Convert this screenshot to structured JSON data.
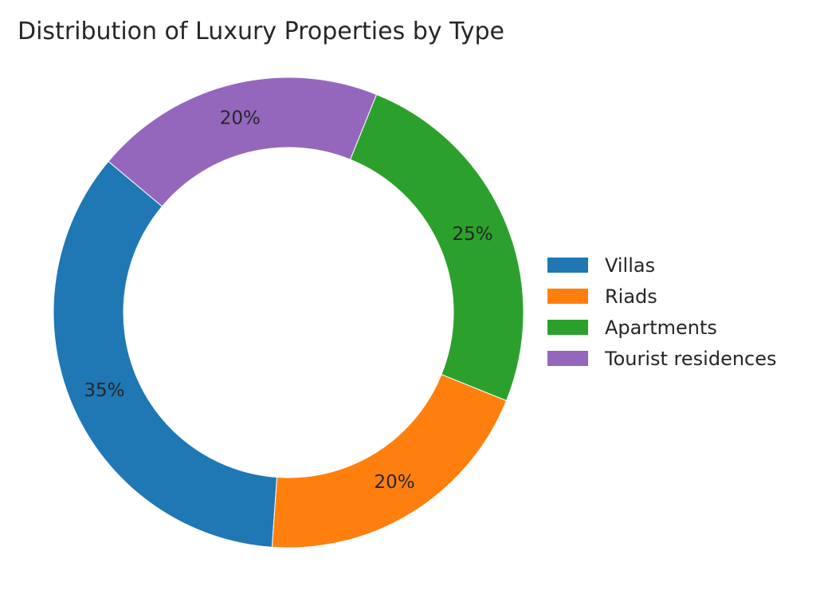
{
  "chart_data": {
    "type": "pie",
    "title": "Distribution of Luxury Properties by Type",
    "donut": true,
    "start_angle_deg": 140,
    "direction": "counterclockwise",
    "legend_position": "right",
    "slices": [
      {
        "label": "Villas",
        "value": 35,
        "pct_label": "35%",
        "color": "#1f77b4"
      },
      {
        "label": "Riads",
        "value": 20,
        "pct_label": "20%",
        "color": "#ff7f0e"
      },
      {
        "label": "Apartments",
        "value": 25,
        "pct_label": "25%",
        "color": "#2ca02c"
      },
      {
        "label": "Tourist residences",
        "value": 20,
        "pct_label": "20%",
        "color": "#9467bd"
      }
    ]
  }
}
